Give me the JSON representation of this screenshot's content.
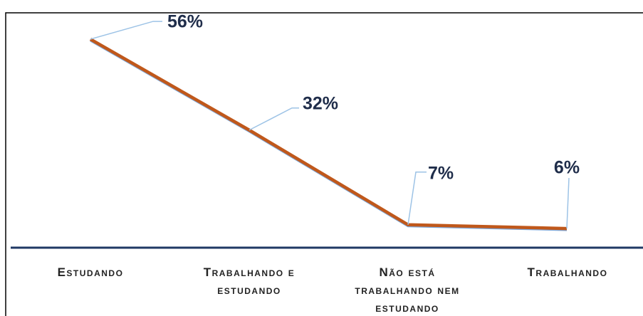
{
  "chart_data": {
    "type": "line",
    "categories": [
      "Estudando",
      "Trabalhando e estudando",
      "Não está trabalhando nem estudando",
      "Trabalhando"
    ],
    "values": [
      56,
      32,
      7,
      6
    ],
    "value_labels": [
      "56%",
      "32%",
      "7%",
      "6%"
    ],
    "color": "#c0581b",
    "ylim": [
      0,
      60
    ]
  }
}
